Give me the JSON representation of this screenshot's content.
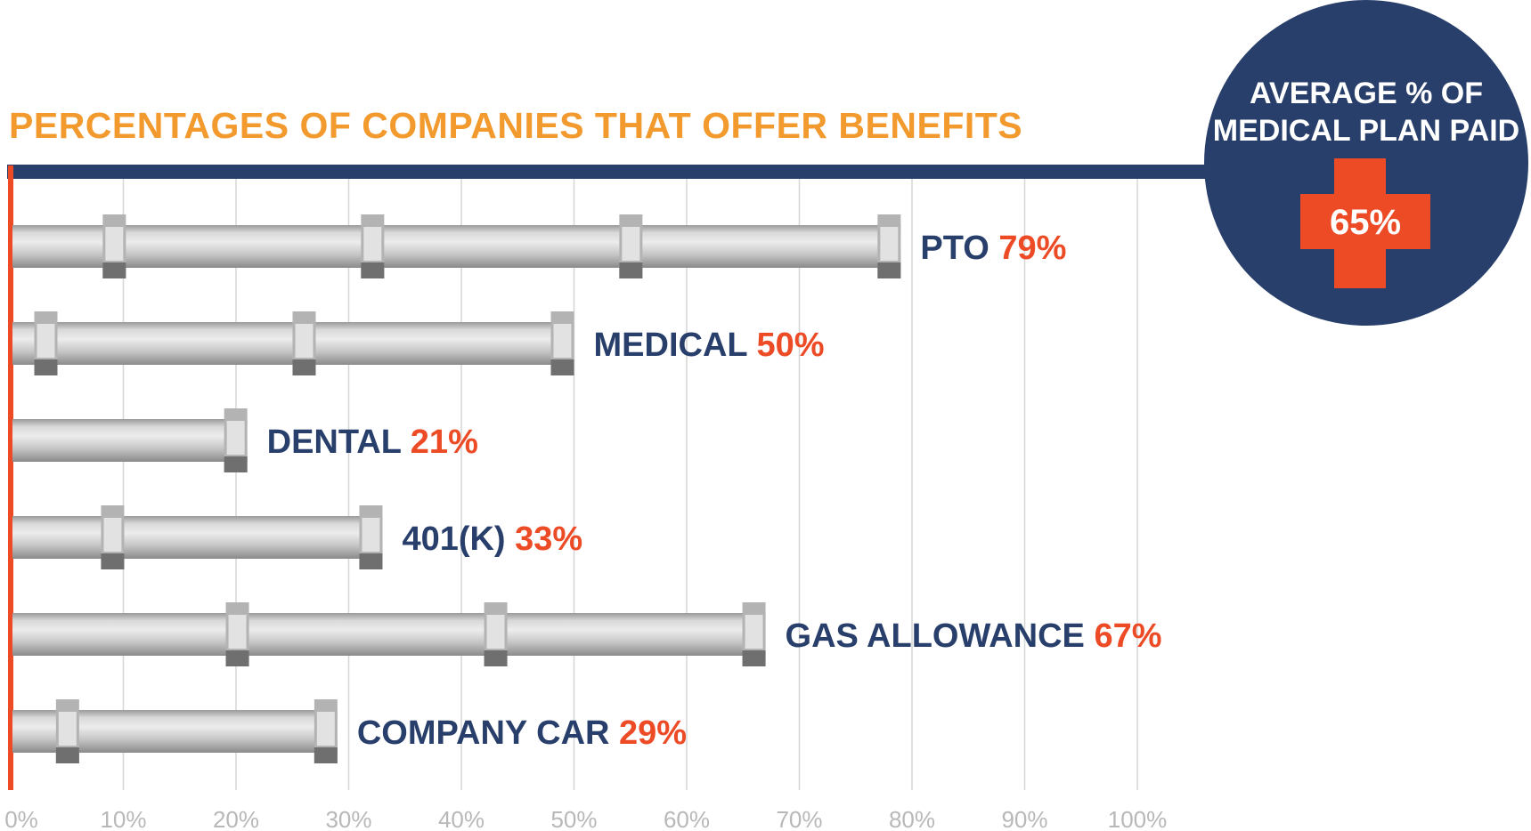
{
  "chart_data": {
    "type": "bar",
    "orientation": "horizontal",
    "title": "PERCENTAGES OF COMPANIES THAT OFFER BENEFITS",
    "categories": [
      "PTO",
      "MEDICAL",
      "DENTAL",
      "401(K)",
      "GAS ALLOWANCE",
      "COMPANY CAR"
    ],
    "values": [
      79,
      50,
      21,
      33,
      67,
      29
    ],
    "value_labels": [
      "79%",
      "50%",
      "21%",
      "33%",
      "67%",
      "29%"
    ],
    "xlim": [
      0,
      100
    ],
    "x_ticks": [
      "0%",
      "10%",
      "20%",
      "30%",
      "40%",
      "50%",
      "60%",
      "70%",
      "80%",
      "90%",
      "100%"
    ],
    "grid": true
  },
  "callout": {
    "title_lines": [
      "AVERAGE % OF",
      "MEDICAL PLAN PAID"
    ],
    "value": "65%"
  },
  "colors": {
    "title": "#f29a2e",
    "navy": "#283f6b",
    "accent_red": "#ec4b26",
    "pipe_light": "#e2e2e2",
    "pipe_mid": "#b3b3b3",
    "pipe_dark": "#6f6f6f",
    "grid": "#d6d6d6",
    "tick_label": "#b8b8b8"
  }
}
